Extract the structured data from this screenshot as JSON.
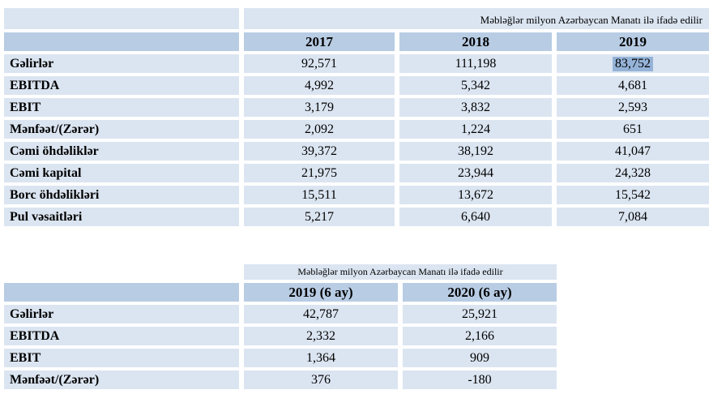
{
  "colors": {
    "header_blue": "#b8cce4",
    "row_blue": "#dbe5f1",
    "selection_blue": "#95b3d7"
  },
  "table1": {
    "note": "Məbləğlər milyon Azərbaycan Manatı ilə ifadə edilir",
    "columns": [
      "2017",
      "2018",
      "2019"
    ],
    "rows": [
      {
        "label": "Gəlirlər",
        "values": [
          "92,571",
          "111,198",
          "83,752"
        ]
      },
      {
        "label": "EBITDA",
        "values": [
          "4,992",
          "5,342",
          "4,681"
        ]
      },
      {
        "label": "EBIT",
        "values": [
          "3,179",
          "3,832",
          "2,593"
        ]
      },
      {
        "label": "Mənfəət/(Zərər)",
        "values": [
          "2,092",
          "1,224",
          "651"
        ]
      },
      {
        "label": "Cəmi öhdəliklər",
        "values": [
          "39,372",
          "38,192",
          "41,047"
        ]
      },
      {
        "label": "Cəmi kapital",
        "values": [
          "21,975",
          "23,944",
          "24,328"
        ]
      },
      {
        "label": "Borc öhdəlikləri",
        "values": [
          "15,511",
          "13,672",
          "15,542"
        ]
      },
      {
        "label": "Pul vəsaitləri",
        "values": [
          "5,217",
          "6,640",
          "7,084"
        ]
      }
    ],
    "highlighted_value": "83,752"
  },
  "table2": {
    "note": "Məbləğlər milyon Azərbaycan Manatı ilə ifadə edilir",
    "columns": [
      "2019 (6 ay)",
      "2020 (6 ay)"
    ],
    "rows": [
      {
        "label": "Gəlirlər",
        "values": [
          "42,787",
          "25,921"
        ]
      },
      {
        "label": "EBITDA",
        "values": [
          "2,332",
          "2,166"
        ]
      },
      {
        "label": "EBIT",
        "values": [
          "1,364",
          "909"
        ]
      },
      {
        "label": "Mənfəət/(Zərər)",
        "values": [
          "376",
          "-180"
        ]
      }
    ]
  }
}
